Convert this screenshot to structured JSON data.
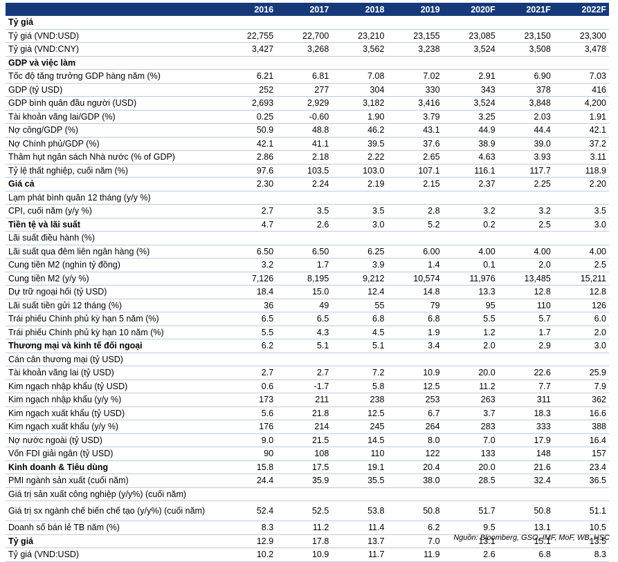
{
  "headers": [
    "",
    "2016",
    "2017",
    "2018",
    "2019",
    "2020F",
    "2021F",
    "2022F"
  ],
  "rows": [
    {
      "label": "Tỷ giá",
      "bold": true,
      "values": [
        "",
        "",
        "",
        "",
        "",
        "",
        ""
      ]
    },
    {
      "label": "Tỷ giá (VND:USD)",
      "values": [
        "22,755",
        "22,700",
        "23,210",
        "23,155",
        "23,085",
        "23,150",
        "23,300"
      ]
    },
    {
      "label": "Tỷ giá (VND:CNY)",
      "values": [
        "3,427",
        "3,268",
        "3,562",
        "3,238",
        "3,524",
        "3,508",
        "3,478"
      ]
    },
    {
      "label": "GDP và việc làm",
      "bold": true,
      "values": [
        "",
        "",
        "",
        "",
        "",
        "",
        ""
      ]
    },
    {
      "label": "Tốc độ tăng trưởng GDP hàng năm (%)",
      "values": [
        "6.21",
        "6.81",
        "7.08",
        "7.02",
        "2.91",
        "6.90",
        "7.03"
      ]
    },
    {
      "label": "GDP (tỷ USD)",
      "values": [
        "252",
        "277",
        "304",
        "330",
        "343",
        "378",
        "416"
      ]
    },
    {
      "label": "GDP bình quân đầu người (USD)",
      "values": [
        "2,693",
        "2,929",
        "3,182",
        "3,416",
        "3,524",
        "3,848",
        "4,200"
      ]
    },
    {
      "label": "Tài khoản vãng lai/GDP (%)",
      "values": [
        "0.25",
        "-0.60",
        "1.90",
        "3.79",
        "3.25",
        "2.03",
        "1.91"
      ]
    },
    {
      "label": "Nợ công/GDP (%)",
      "values": [
        "50.9",
        "48.8",
        "46.2",
        "43.1",
        "44.9",
        "44.4",
        "42.1"
      ]
    },
    {
      "label": "Nợ Chính phủ/GDP (%)",
      "values": [
        "42.1",
        "41.1",
        "39.5",
        "37.6",
        "38.9",
        "39.0",
        "37.2"
      ]
    },
    {
      "label": "Thâm hụt ngân sách Nhà nước (% of GDP)",
      "values": [
        "2.86",
        "2.18",
        "2.22",
        "2.65",
        "4.63",
        "3.93",
        "3.11"
      ]
    },
    {
      "label": "Tỷ lệ thất nghiệp, cuối năm (%)",
      "values": [
        "97.6",
        "103.5",
        "103.0",
        "107.1",
        "116.1",
        "117.7",
        "118.9"
      ]
    },
    {
      "label": "Giá cả",
      "bold": true,
      "values": [
        "2.30",
        "2.24",
        "2.19",
        "2.15",
        "2.37",
        "2.25",
        "2.20"
      ]
    },
    {
      "label": "Lạm phát bình quân 12 tháng (y/y %)",
      "values": [
        "",
        "",
        "",
        "",
        "",
        "",
        ""
      ]
    },
    {
      "label": "CPI, cuối năm (y/y %)",
      "values": [
        "2.7",
        "3.5",
        "3.5",
        "2.8",
        "3.2",
        "3.2",
        "3.5"
      ]
    },
    {
      "label": "Tiền tệ và lãi suất",
      "bold": true,
      "values": [
        "4.7",
        "2.6",
        "3.0",
        "5.2",
        "0.2",
        "2.5",
        "3.0"
      ]
    },
    {
      "label": "Lãi suất điều hành (%)",
      "values": [
        "",
        "",
        "",
        "",
        "",
        "",
        ""
      ]
    },
    {
      "label": "Lãi suất qua đêm liên ngân hàng (%)",
      "values": [
        "6.50",
        "6.50",
        "6.25",
        "6.00",
        "4.00",
        "4.00",
        "4.00"
      ]
    },
    {
      "label": "Cung tiền M2 (nghìn tỷ đồng)",
      "values": [
        "3.2",
        "1.7",
        "3.9",
        "1.4",
        "0.1",
        "2.0",
        "2.5"
      ]
    },
    {
      "label": "Cung tiền M2 (y/y %)",
      "values": [
        "7,126",
        "8,195",
        "9,212",
        "10,574",
        "11,976",
        "13,485",
        "15,211"
      ]
    },
    {
      "label": "Dự trữ ngoại hối (tỷ USD)",
      "values": [
        "18.4",
        "15.0",
        "12.4",
        "14.8",
        "13.3",
        "12.8",
        "12.8"
      ]
    },
    {
      "label": "Lãi suất tiền gửi 12 tháng (%)",
      "values": [
        "36",
        "49",
        "55",
        "79",
        "95",
        "110",
        "126"
      ]
    },
    {
      "label": "Trái phiếu Chính phủ kỳ hạn 5 năm (%)",
      "values": [
        "6.5",
        "6.5",
        "6.8",
        "6.8",
        "5.5",
        "5.7",
        "6.0"
      ]
    },
    {
      "label": "Trái phiếu Chính phủ kỳ hạn 10 năm (%)",
      "values": [
        "5.5",
        "4.3",
        "4.5",
        "1.9",
        "1.2",
        "1.7",
        "2.0"
      ]
    },
    {
      "label": "Thương mại và kinh tế đối ngoại",
      "bold": true,
      "values": [
        "6.2",
        "5.1",
        "5.1",
        "3.4",
        "2.0",
        "2.9",
        "3.0"
      ]
    },
    {
      "label": "Cán cân thương mại (tỷ USD)",
      "values": [
        "",
        "",
        "",
        "",
        "",
        "",
        ""
      ]
    },
    {
      "label": "Tài khoản vãng lai (tỷ USD)",
      "values": [
        "2.7",
        "2.7",
        "7.2",
        "10.9",
        "20.0",
        "22.6",
        "25.9"
      ]
    },
    {
      "label": "Kim ngạch nhập khẩu (tỷ USD)",
      "values": [
        "0.6",
        "-1.7",
        "5.8",
        "12.5",
        "11.2",
        "7.7",
        "7.9"
      ]
    },
    {
      "label": "Kim ngạch nhập khẩu (y/y %)",
      "values": [
        "173",
        "211",
        "238",
        "253",
        "263",
        "311",
        "362"
      ]
    },
    {
      "label": "Kim ngạch xuất khẩu (tỷ USD)",
      "values": [
        "5.6",
        "21.8",
        "12.5",
        "6.7",
        "3.7",
        "18.3",
        "16.6"
      ]
    },
    {
      "label": "Kim ngạch xuất khẩu (y/y %)",
      "values": [
        "176",
        "214",
        "245",
        "264",
        "283",
        "333",
        "388"
      ]
    },
    {
      "label": "Nợ nước ngoài (tỷ USD)",
      "values": [
        "9.0",
        "21.5",
        "14.5",
        "8.0",
        "7.0",
        "17.9",
        "16.4"
      ]
    },
    {
      "label": "Vốn FDI giải ngân (tỷ USD)",
      "values": [
        "90",
        "108",
        "110",
        "122",
        "133",
        "148",
        "157"
      ]
    },
    {
      "label": "Kinh doanh & Tiêu dùng",
      "bold": true,
      "values": [
        "15.8",
        "17.5",
        "19.1",
        "20.4",
        "20.0",
        "21.6",
        "23.4"
      ]
    },
    {
      "label": "PMI ngành sản xuất (cuối năm)",
      "values": [
        "24.4",
        "35.9",
        "35.5",
        "38.0",
        "28.5",
        "32.4",
        "36.5"
      ]
    },
    {
      "label": "Giá trị sản xuất công nghiệp (y/y%) (cuối năm)",
      "values": [
        "",
        "",
        "",
        "",
        "",
        "",
        ""
      ]
    },
    {
      "label": "Giá trị sx ngành chế biến chế tạo (y/y%) (cuối năm)",
      "tall": true,
      "values": [
        "52.4",
        "52.5",
        "53.8",
        "50.8",
        "51.7",
        "50.8",
        "51.1"
      ]
    },
    {
      "label": "Doanh số bán lẻ TB năm (%)",
      "values": [
        "8.3",
        "11.2",
        "11.4",
        "6.2",
        "9.5",
        "13.1",
        "10.5"
      ]
    },
    {
      "label": "Tỷ giá",
      "bold": true,
      "values": [
        "12.9",
        "17.8",
        "13.7",
        "7.0",
        "13.1",
        "15.1",
        "13.5"
      ]
    },
    {
      "label": "Tỷ giá (VND:USD)",
      "values": [
        "10.2",
        "10.9",
        "11.7",
        "11.9",
        "2.6",
        "6.8",
        "8.3"
      ]
    }
  ],
  "source": "Nguồn: Bloomberg, GSO, IMF, MoF, WB, HSC"
}
